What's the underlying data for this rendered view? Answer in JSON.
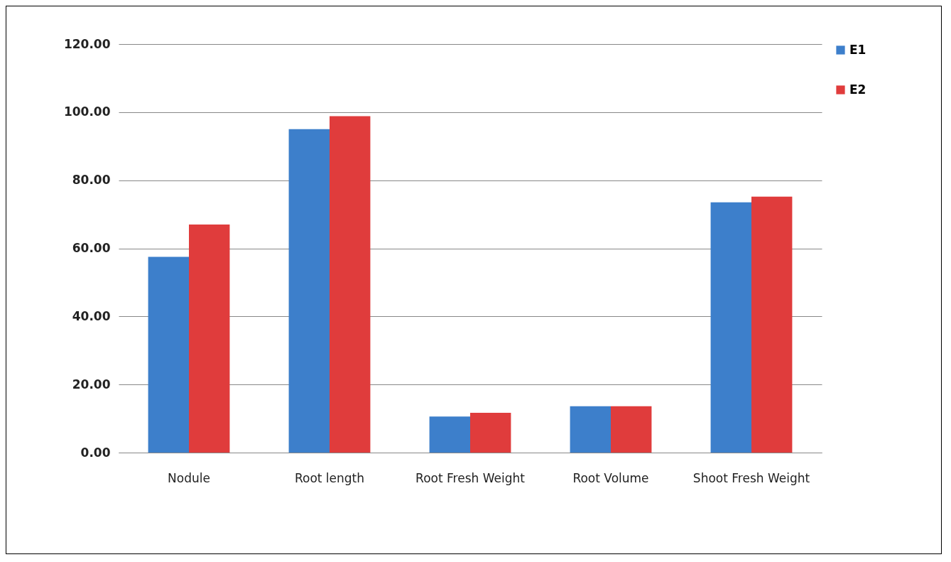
{
  "chart_data": {
    "type": "bar",
    "categories": [
      "Nodule",
      "Root length",
      "Root Fresh Weight",
      "Root Volume",
      "Shoot Fresh Weight"
    ],
    "series": [
      {
        "name": "E1",
        "color": "#3d7fcb",
        "values": [
          57.5,
          95,
          10.6,
          13.6,
          73.5
        ]
      },
      {
        "name": "E2",
        "color": "#e03c3c",
        "values": [
          67,
          98.8,
          11.7,
          13.6,
          75.2
        ]
      }
    ],
    "ylim": [
      0,
      120
    ],
    "yticks": [
      {
        "value": 0,
        "label": "0.00"
      },
      {
        "value": 20,
        "label": "20.00"
      },
      {
        "value": 40,
        "label": "40.00"
      },
      {
        "value": 60,
        "label": "60.00"
      },
      {
        "value": 80,
        "label": "80.00"
      },
      {
        "value": 100,
        "label": "100.00"
      },
      {
        "value": 120,
        "label": "120.00"
      }
    ],
    "grid": "y",
    "legend": "right"
  }
}
